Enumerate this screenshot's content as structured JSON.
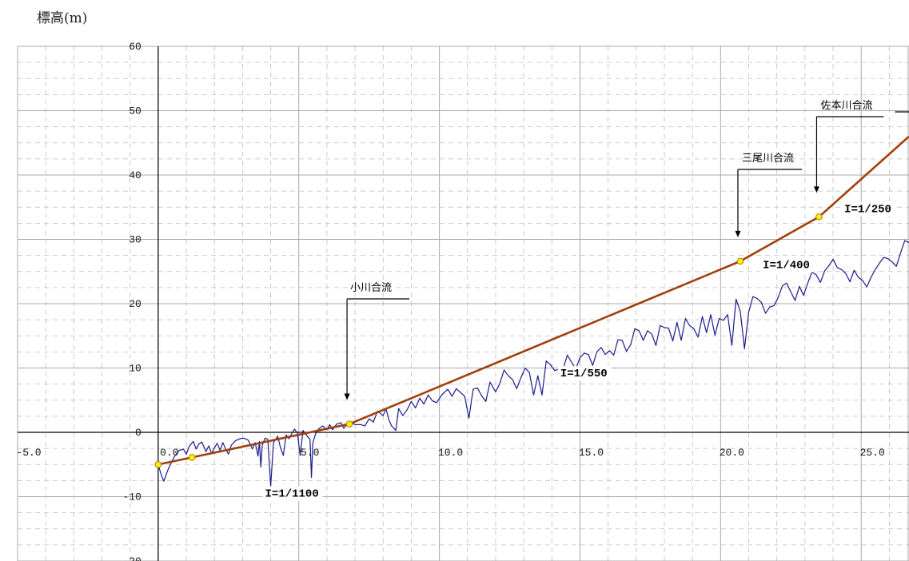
{
  "chart_data": {
    "type": "line",
    "ylabel": "標高(m)",
    "xlabel": "",
    "xlim": [
      -5.0,
      26.7
    ],
    "ylim": [
      -20,
      60
    ],
    "x_ticks": [
      -5.0,
      0.0,
      5.0,
      10.0,
      15.0,
      20.0,
      25.0
    ],
    "x_tick_labels": [
      "-5.0",
      "0.0",
      "5.0",
      "10.0",
      "15.0",
      "20.0",
      "25.0"
    ],
    "y_ticks": [
      -20,
      -10,
      0,
      10,
      20,
      30,
      40,
      50,
      60
    ],
    "y_tick_labels": [
      "-20",
      "-10",
      "0",
      "10",
      "20",
      "30",
      "40",
      "50",
      "60"
    ],
    "grid": true,
    "colors": {
      "profile": "#1a1a8c",
      "gradient": "#a0400a",
      "points": "#ffee00",
      "grid": "#bdbdbd",
      "axis": "#000000"
    },
    "series": [
      {
        "values": [
          [
            0.0,
            -5.0
          ],
          [
            0.1,
            -6.5
          ],
          [
            0.2,
            -7.6
          ],
          [
            0.35,
            -5.8
          ],
          [
            0.5,
            -4.4
          ],
          [
            0.6,
            -3.6
          ],
          [
            0.75,
            -2.8
          ],
          [
            0.9,
            -2.6
          ],
          [
            1.0,
            -3.4
          ],
          [
            1.1,
            -2.2
          ],
          [
            1.25,
            -1.4
          ],
          [
            1.35,
            -2.6
          ],
          [
            1.45,
            -1.8
          ],
          [
            1.55,
            -1.5
          ],
          [
            1.7,
            -3.0
          ],
          [
            1.8,
            -2.1
          ],
          [
            1.9,
            -3.3
          ],
          [
            2.0,
            -2.4
          ],
          [
            2.1,
            -1.7
          ],
          [
            2.2,
            -2.8
          ],
          [
            2.3,
            -1.6
          ],
          [
            2.4,
            -2.6
          ],
          [
            2.5,
            -3.4
          ],
          [
            2.6,
            -2.0
          ],
          [
            2.75,
            -1.3
          ],
          [
            2.9,
            -1.0
          ],
          [
            3.05,
            -0.9
          ],
          [
            3.2,
            -1.2
          ],
          [
            3.35,
            -2.6
          ],
          [
            3.45,
            -1.6
          ],
          [
            3.55,
            -3.7
          ],
          [
            3.6,
            -1.4
          ],
          [
            3.65,
            -5.4
          ],
          [
            3.7,
            -2.0
          ],
          [
            3.8,
            -0.9
          ],
          [
            3.9,
            -1.1
          ],
          [
            4.0,
            -8.4
          ],
          [
            4.1,
            -1.6
          ],
          [
            4.25,
            -0.6
          ],
          [
            4.35,
            -2.4
          ],
          [
            4.45,
            -3.6
          ],
          [
            4.55,
            -0.4
          ],
          [
            4.65,
            -1.0
          ],
          [
            4.75,
            -0.2
          ],
          [
            4.85,
            0.5
          ],
          [
            4.95,
            -0.1
          ],
          [
            5.05,
            -3.6
          ],
          [
            5.15,
            0.3
          ],
          [
            5.3,
            -0.6
          ],
          [
            5.4,
            -1.1
          ],
          [
            5.45,
            -7.0
          ],
          [
            5.5,
            -1.6
          ],
          [
            5.6,
            -0.2
          ],
          [
            5.7,
            0.5
          ],
          [
            5.85,
            1.0
          ],
          [
            6.0,
            0.4
          ],
          [
            6.1,
            1.2
          ],
          [
            6.2,
            0.4
          ],
          [
            6.35,
            1.3
          ],
          [
            6.5,
            1.5
          ],
          [
            6.6,
            0.6
          ],
          [
            6.8,
            1.7
          ],
          [
            7.0,
            1.2
          ],
          [
            7.2,
            1.2
          ],
          [
            7.35,
            1.0
          ],
          [
            7.5,
            2.1
          ],
          [
            7.65,
            1.6
          ],
          [
            7.8,
            3.3
          ],
          [
            8.0,
            2.6
          ],
          [
            8.1,
            3.7
          ],
          [
            8.2,
            2.0
          ],
          [
            8.3,
            1.0
          ],
          [
            8.45,
            0.3
          ],
          [
            8.55,
            3.7
          ],
          [
            8.7,
            2.6
          ],
          [
            8.85,
            3.5
          ],
          [
            9.0,
            4.8
          ],
          [
            9.15,
            3.8
          ],
          [
            9.3,
            5.3
          ],
          [
            9.45,
            4.4
          ],
          [
            9.6,
            5.8
          ],
          [
            9.75,
            4.9
          ],
          [
            9.9,
            4.6
          ],
          [
            10.1,
            5.9
          ],
          [
            10.3,
            6.7
          ],
          [
            10.45,
            5.6
          ],
          [
            10.6,
            6.8
          ],
          [
            10.75,
            6.2
          ],
          [
            10.9,
            5.6
          ],
          [
            11.05,
            2.2
          ],
          [
            11.2,
            6.7
          ],
          [
            11.35,
            6.9
          ],
          [
            11.5,
            5.7
          ],
          [
            11.65,
            4.8
          ],
          [
            11.8,
            7.8
          ],
          [
            12.0,
            6.3
          ],
          [
            12.15,
            7.6
          ],
          [
            12.3,
            9.7
          ],
          [
            12.45,
            8.8
          ],
          [
            12.6,
            8.2
          ],
          [
            12.75,
            6.8
          ],
          [
            12.9,
            8.5
          ],
          [
            13.05,
            10.0
          ],
          [
            13.2,
            9.3
          ],
          [
            13.35,
            5.8
          ],
          [
            13.5,
            8.8
          ],
          [
            13.65,
            5.8
          ],
          [
            13.8,
            11.1
          ],
          [
            13.95,
            10.5
          ],
          [
            14.1,
            9.6
          ],
          [
            14.25,
            9.8
          ],
          [
            14.4,
            9.9
          ],
          [
            14.55,
            12.0
          ],
          [
            14.7,
            10.9
          ],
          [
            14.85,
            9.9
          ],
          [
            15.0,
            11.6
          ],
          [
            15.15,
            12.3
          ],
          [
            15.3,
            12.1
          ],
          [
            15.45,
            10.4
          ],
          [
            15.6,
            12.5
          ],
          [
            15.75,
            13.2
          ],
          [
            15.9,
            12.1
          ],
          [
            16.05,
            12.7
          ],
          [
            16.2,
            12.0
          ],
          [
            16.35,
            14.4
          ],
          [
            16.5,
            14.3
          ],
          [
            16.65,
            12.6
          ],
          [
            16.8,
            13.6
          ],
          [
            16.95,
            16.1
          ],
          [
            17.1,
            15.8
          ],
          [
            17.25,
            14.3
          ],
          [
            17.4,
            15.8
          ],
          [
            17.55,
            15.3
          ],
          [
            17.7,
            13.5
          ],
          [
            17.85,
            16.6
          ],
          [
            18.0,
            16.3
          ],
          [
            18.15,
            16.2
          ],
          [
            18.3,
            14.2
          ],
          [
            18.45,
            17.1
          ],
          [
            18.6,
            14.3
          ],
          [
            18.75,
            17.7
          ],
          [
            18.9,
            16.6
          ],
          [
            19.05,
            16.1
          ],
          [
            19.2,
            14.8
          ],
          [
            19.35,
            18.0
          ],
          [
            19.5,
            15.5
          ],
          [
            19.65,
            18.3
          ],
          [
            19.8,
            15.1
          ],
          [
            19.95,
            17.7
          ],
          [
            20.1,
            17.4
          ],
          [
            20.25,
            18.3
          ],
          [
            20.4,
            13.5
          ],
          [
            20.55,
            20.7
          ],
          [
            20.7,
            18.8
          ],
          [
            20.85,
            13.0
          ],
          [
            21.0,
            18.7
          ],
          [
            21.15,
            21.1
          ],
          [
            21.3,
            20.8
          ],
          [
            21.45,
            20.2
          ],
          [
            21.6,
            18.5
          ],
          [
            21.75,
            19.5
          ],
          [
            21.9,
            19.7
          ],
          [
            22.05,
            21.0
          ],
          [
            22.2,
            22.8
          ],
          [
            22.35,
            23.2
          ],
          [
            22.5,
            21.8
          ],
          [
            22.65,
            20.5
          ],
          [
            22.8,
            22.7
          ],
          [
            22.95,
            21.3
          ],
          [
            23.1,
            23.2
          ],
          [
            23.25,
            24.9
          ],
          [
            23.4,
            24.5
          ],
          [
            23.55,
            23.3
          ],
          [
            23.7,
            25.1
          ],
          [
            23.85,
            25.9
          ],
          [
            24.0,
            26.9
          ],
          [
            24.15,
            25.6
          ],
          [
            24.3,
            25.3
          ],
          [
            24.45,
            24.7
          ],
          [
            24.6,
            23.4
          ],
          [
            24.75,
            25.2
          ],
          [
            24.9,
            24.1
          ],
          [
            25.05,
            23.6
          ],
          [
            25.2,
            22.6
          ],
          [
            25.35,
            24.1
          ],
          [
            25.5,
            25.3
          ],
          [
            25.65,
            26.3
          ],
          [
            25.8,
            27.2
          ],
          [
            25.95,
            27.0
          ],
          [
            26.1,
            26.5
          ],
          [
            26.25,
            25.8
          ],
          [
            26.4,
            27.9
          ],
          [
            26.55,
            29.8
          ],
          [
            26.7,
            29.5
          ]
        ]
      },
      {
        "values": [
          [
            0.0,
            -5.0
          ],
          [
            1.2,
            -3.9
          ],
          [
            6.8,
            1.3
          ],
          [
            20.7,
            26.6
          ],
          [
            23.5,
            33.5
          ],
          [
            26.7,
            46.0
          ]
        ]
      }
    ],
    "annotations": [
      {
        "text": "小川合流",
        "x": 6.8,
        "y": 1.3
      },
      {
        "text": "三尾川合流",
        "x": 20.7,
        "y": 26.6
      },
      {
        "text": "佐本川合流",
        "x": 23.5,
        "y": 33.5
      }
    ],
    "slope_labels": [
      {
        "text": "I=1/1100",
        "x": 3.8,
        "y": -10.0
      },
      {
        "text": "I=1/550",
        "x": 14.3,
        "y": 8.7
      },
      {
        "text": "I=1/400",
        "x": 21.5,
        "y": 25.5
      },
      {
        "text": "I=1/250",
        "x": 24.4,
        "y": 34.2
      }
    ]
  }
}
